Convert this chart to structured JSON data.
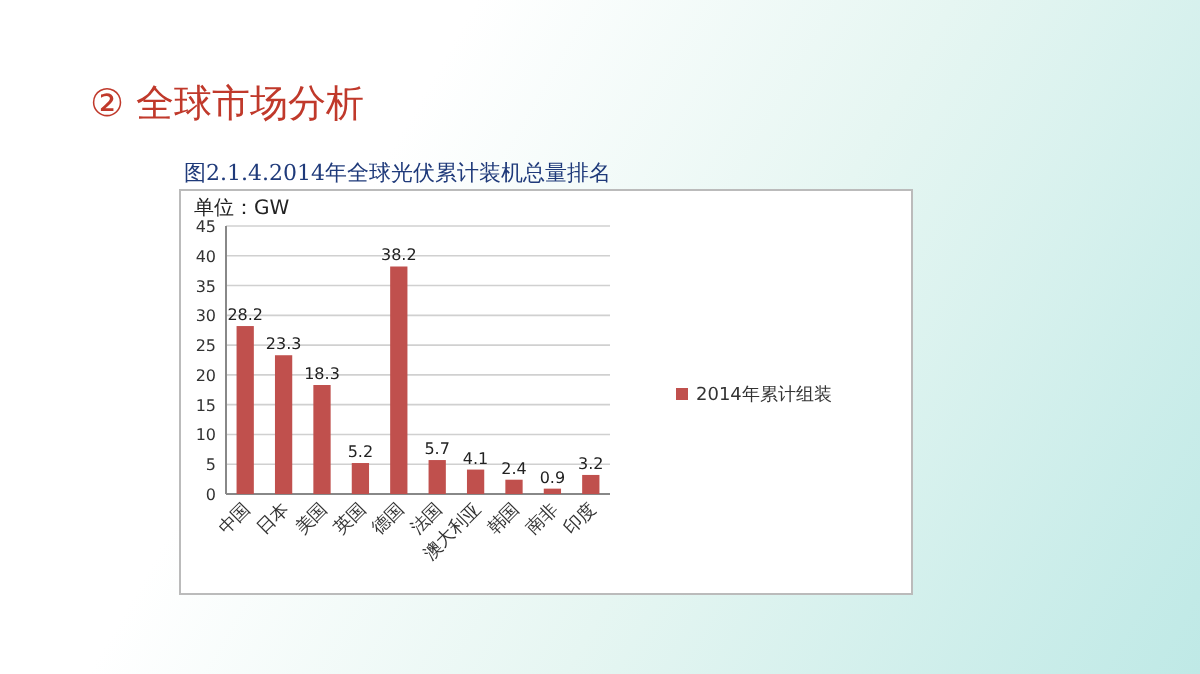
{
  "chart_data": {
    "type": "bar",
    "title": "② 全球市场分析",
    "subtitle": "图2.1.4.2014年全球光伏累计装机总量排名",
    "ylabel": "单位：GW",
    "categories": [
      "中国",
      "日本",
      "美国",
      "英国",
      "德国",
      "法国",
      "澳大利亚",
      "韩国",
      "南非",
      "印度"
    ],
    "series": [
      {
        "name": "2014年累计组装",
        "color": "#c0504d",
        "values": [
          28.2,
          23.3,
          18.3,
          5.2,
          38.2,
          5.7,
          4.1,
          2.4,
          0.9,
          3.2
        ]
      }
    ],
    "ylim": [
      0,
      45
    ],
    "yticks": [
      0,
      5,
      10,
      15,
      20,
      25,
      30,
      35,
      40,
      45
    ],
    "grid": "y",
    "data_labels": true,
    "legend": "right"
  }
}
